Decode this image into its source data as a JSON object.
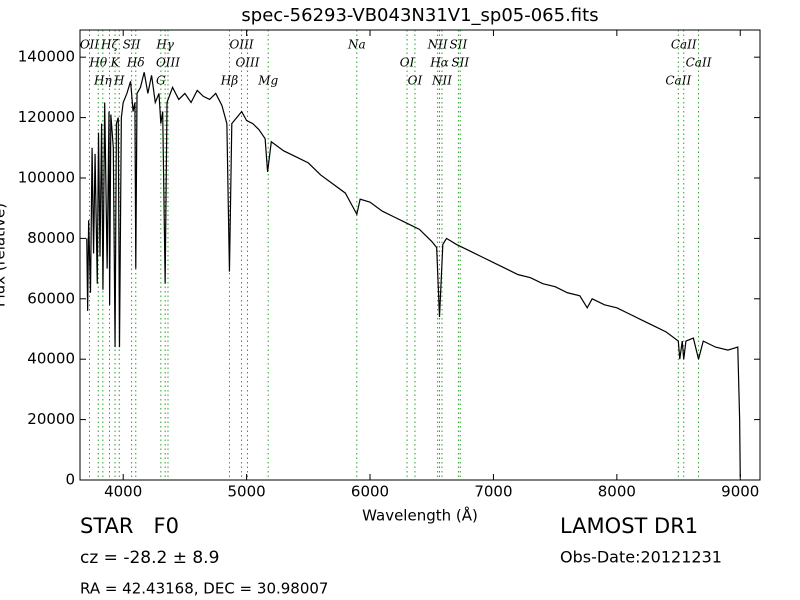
{
  "chart_data": {
    "type": "line",
    "title": "spec-56293-VB043N31V1_sp05-065.fits",
    "x_label": "Wavelength (Å)",
    "y_label": "Flux (relative)",
    "x": [
      3705,
      3712,
      3720,
      3735,
      3748,
      3760,
      3772,
      3790,
      3800,
      3812,
      3825,
      3836,
      3850,
      3870,
      3885,
      3890,
      3900,
      3920,
      3934,
      3945,
      3960,
      3970,
      3985,
      4000,
      4030,
      4060,
      4080,
      4095,
      4102,
      4112,
      4140,
      4170,
      4200,
      4230,
      4260,
      4290,
      4305,
      4320,
      4340,
      4355,
      4400,
      4450,
      4500,
      4550,
      4600,
      4650,
      4700,
      4750,
      4800,
      4840,
      4861,
      4880,
      4920,
      4960,
      5000,
      5050,
      5100,
      5150,
      5170,
      5200,
      5300,
      5400,
      5500,
      5600,
      5700,
      5800,
      5893,
      5920,
      6000,
      6100,
      6200,
      6300,
      6400,
      6500,
      6540,
      6563,
      6590,
      6620,
      6700,
      6800,
      6900,
      7000,
      7100,
      7200,
      7300,
      7400,
      7500,
      7600,
      7700,
      7760,
      7800,
      7900,
      8000,
      8100,
      8200,
      8300,
      8400,
      8498,
      8510,
      8530,
      8542,
      8560,
      8620,
      8662,
      8700,
      8800,
      8900,
      8980,
      8995,
      9000
    ],
    "series": [
      {
        "name": "spectrum",
        "color": "#000000",
        "values": [
          80000,
          56000,
          86000,
          62000,
          110000,
          75000,
          108000,
          65000,
          115000,
          74000,
          118000,
          63000,
          125000,
          70000,
          122000,
          58000,
          121000,
          110000,
          44000,
          118000,
          120000,
          44000,
          120000,
          125000,
          128000,
          132000,
          122000,
          125000,
          70000,
          128000,
          130000,
          135000,
          128000,
          134000,
          125000,
          128000,
          118000,
          122000,
          65000,
          125000,
          130000,
          126000,
          128000,
          125000,
          129000,
          127000,
          126000,
          128000,
          124000,
          118000,
          69000,
          118000,
          120000,
          122000,
          119000,
          118000,
          116000,
          113000,
          102000,
          112000,
          109000,
          107000,
          105000,
          101000,
          98000,
          95000,
          88000,
          93000,
          92000,
          89000,
          87000,
          85000,
          83000,
          79000,
          77000,
          54000,
          78000,
          80000,
          78000,
          76000,
          74000,
          72000,
          70000,
          68000,
          67000,
          65000,
          64000,
          62000,
          61000,
          57000,
          60000,
          58000,
          57000,
          55000,
          53000,
          51000,
          49000,
          46000,
          40000,
          46000,
          40000,
          46000,
          47000,
          40000,
          46000,
          44000,
          43000,
          44000,
          20000,
          1000
        ]
      }
    ],
    "xlim": [
      3650,
      9160
    ],
    "ylim": [
      0,
      149000
    ],
    "xticks": [
      4000,
      5000,
      6000,
      7000,
      8000,
      9000
    ],
    "yticks": [
      0,
      20000,
      40000,
      60000,
      80000,
      100000,
      120000,
      140000
    ],
    "line_color": "#2ca02c",
    "spectral_lines": [
      {
        "wavelength": 3727,
        "label": "OII"
      },
      {
        "wavelength": 3798,
        "label": "Hθ"
      },
      {
        "wavelength": 3835,
        "label": "Hη"
      },
      {
        "wavelength": 3889,
        "label": "Hζ"
      },
      {
        "wavelength": 3934,
        "label": "K"
      },
      {
        "wavelength": 3968,
        "label": "H"
      },
      {
        "wavelength": 4068,
        "label": "SII"
      },
      {
        "wavelength": 4102,
        "label": "Hδ"
      },
      {
        "wavelength": 4305,
        "label": "G"
      },
      {
        "wavelength": 4340,
        "label": "Hγ"
      },
      {
        "wavelength": 4363,
        "label": "OIII"
      },
      {
        "wavelength": 4861,
        "label": "Hβ"
      },
      {
        "wavelength": 4959,
        "label": "OIII"
      },
      {
        "wavelength": 5007,
        "label": "OIII"
      },
      {
        "wavelength": 5175,
        "label": "Mg"
      },
      {
        "wavelength": 5893,
        "label": "Na"
      },
      {
        "wavelength": 6300,
        "label": "OI"
      },
      {
        "wavelength": 6364,
        "label": "OI"
      },
      {
        "wavelength": 6548,
        "label": "NII"
      },
      {
        "wavelength": 6563,
        "label": "Hα"
      },
      {
        "wavelength": 6583,
        "label": "NII"
      },
      {
        "wavelength": 6716,
        "label": "SII"
      },
      {
        "wavelength": 6731,
        "label": "SII"
      },
      {
        "wavelength": 8498,
        "label": "CaII"
      },
      {
        "wavelength": 8542,
        "label": "CaII"
      },
      {
        "wavelength": 8662,
        "label": "CaII"
      }
    ],
    "object_class": "STAR   F0",
    "redshift": "cz = -28.2 ± 8.9",
    "coordinates": "RA = 42.43168, DEC = 30.98007",
    "survey": "LAMOST DR1",
    "obs_date": "Obs-Date:20121231"
  }
}
